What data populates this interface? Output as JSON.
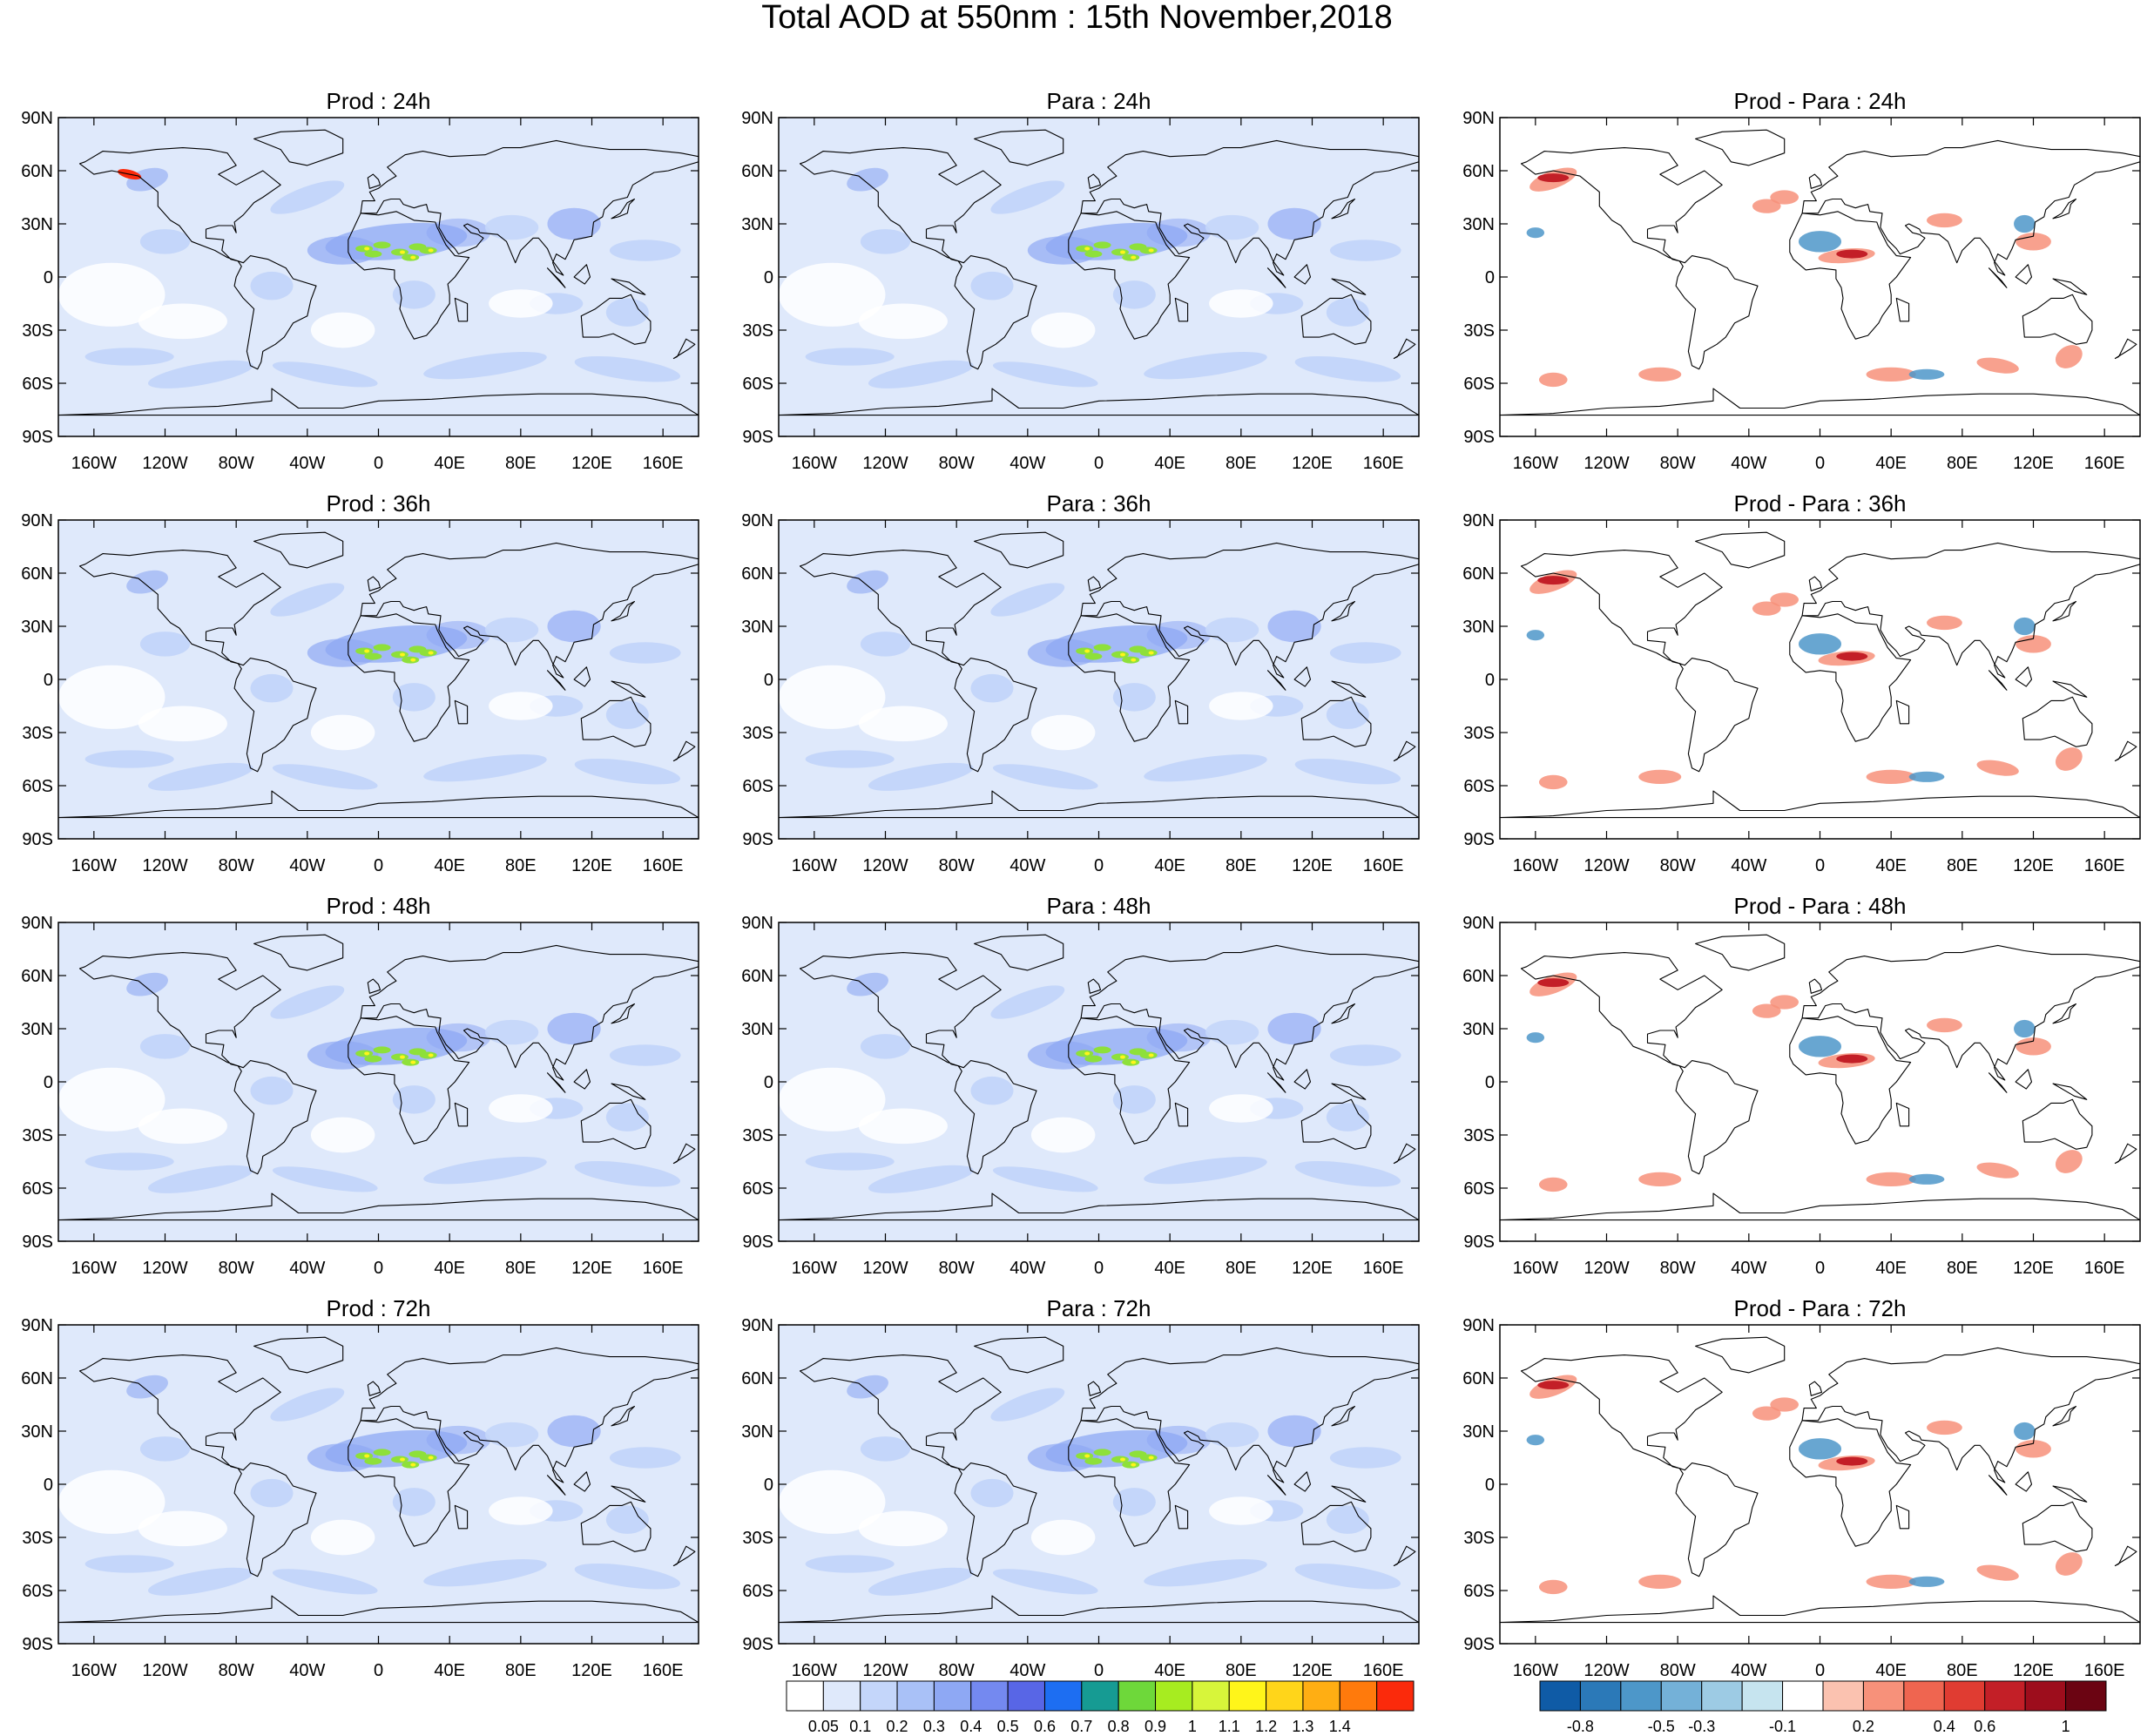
{
  "title": "Total AOD at 550nm : 15th November,2018",
  "panel_titles": [
    [
      "Prod : 24h",
      "Para : 24h",
      "Prod - Para : 24h"
    ],
    [
      "Prod : 36h",
      "Para : 36h",
      "Prod - Para : 36h"
    ],
    [
      "Prod : 48h",
      "Para : 48h",
      "Prod - Para : 48h"
    ],
    [
      "Prod : 72h",
      "Para : 72h",
      "Prod - Para : 72h"
    ]
  ],
  "lat_ticks": [
    "90N",
    "60N",
    "30N",
    "0",
    "30S",
    "60S",
    "90S"
  ],
  "lon_ticks": [
    "160W",
    "120W",
    "80W",
    "40W",
    "0",
    "40E",
    "80E",
    "120E",
    "160E"
  ],
  "lat_values": [
    90,
    60,
    30,
    0,
    -30,
    -60,
    -90
  ],
  "lon_values": [
    -160,
    -120,
    -80,
    -40,
    0,
    40,
    80,
    120,
    160
  ],
  "aod_colorbar": {
    "labels": [
      "0.05",
      "0.1",
      "0.2",
      "0.3",
      "0.4",
      "0.5",
      "0.6",
      "0.7",
      "0.8",
      "0.9",
      "1",
      "1.1",
      "1.2",
      "1.3",
      "1.4"
    ],
    "colors": [
      "#ffffff",
      "#dfe9fb",
      "#c4d6fa",
      "#a9c1f7",
      "#8ea8f4",
      "#7489f0",
      "#5866e6",
      "#1d6ef2",
      "#169b93",
      "#6ed83a",
      "#a7ec20",
      "#d7f53a",
      "#fff51a",
      "#ffd51a",
      "#ffae13",
      "#ff7a0c",
      "#fb2a0b"
    ]
  },
  "diff_colorbar": {
    "labels": [
      "-0.8",
      "-0.5",
      "-0.3",
      "-0.1",
      "0.2",
      "0.4",
      "0.6",
      "1"
    ],
    "colors": [
      "#0f5ba6",
      "#2b79b8",
      "#4d97c9",
      "#74b1d8",
      "#9dcbe4",
      "#c6e4ef",
      "#ffffff",
      "#fbc2b0",
      "#f7917a",
      "#ef6550",
      "#e03c32",
      "#c31f27",
      "#9d0d1c",
      "#6b0412"
    ]
  },
  "map_colors": {
    "land_outline": "#000000",
    "aod_background": "#dfe9fb",
    "aod_light": "#c4d6fa",
    "aod_mid": "#8ea8f4",
    "dust_green": "#8ee03a",
    "dust_yellow": "#fff51a",
    "hot_red": "#fb2a0b"
  }
}
